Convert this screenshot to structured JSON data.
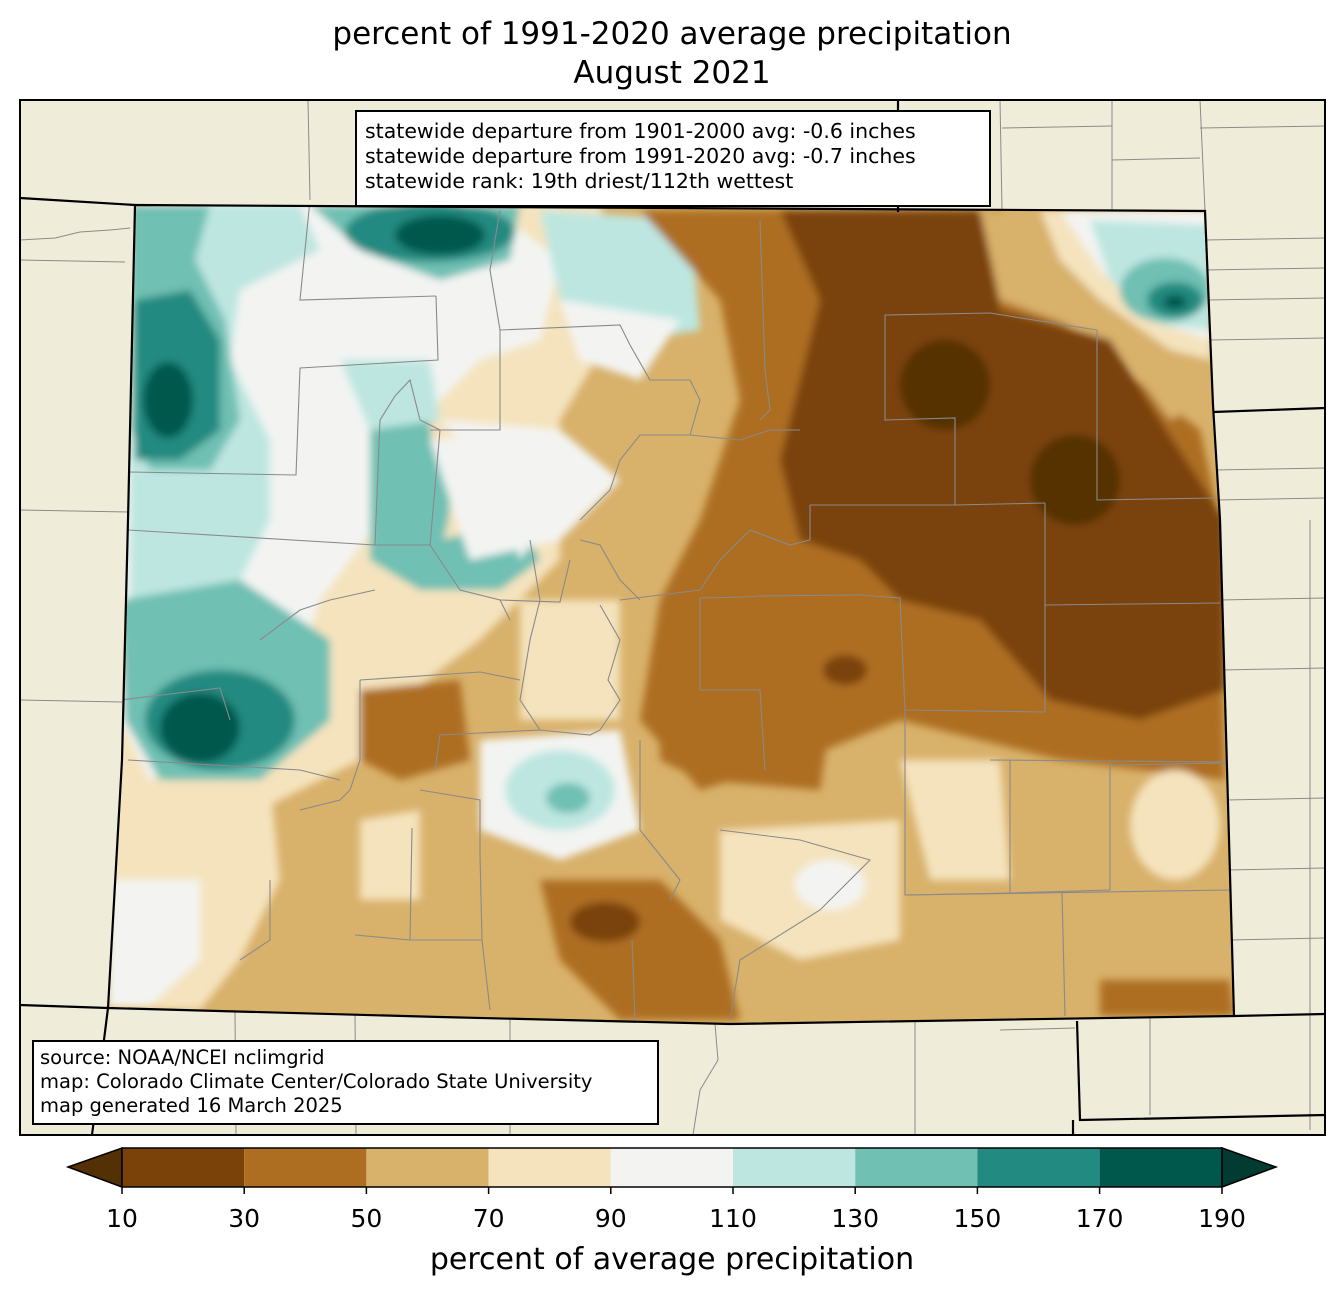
{
  "title": {
    "line1": "percent of 1991-2020 average precipitation",
    "line2": "August 2021"
  },
  "stats_box": {
    "line1": "statewide departure from 1901-2000 avg: -0.6 inches",
    "line2": "statewide departure from 1991-2020 avg: -0.7 inches",
    "line3": "statewide rank: 19th driest/112th wettest"
  },
  "source_box": {
    "line1": "source: NOAA/NCEI nclimgrid",
    "line2": "map: Colorado Climate Center/Colorado State University",
    "line3": "map generated 16 March 2025"
  },
  "colorbar": {
    "label": "percent of average precipitation",
    "ticks": [
      "10",
      "30",
      "50",
      "70",
      "90",
      "110",
      "130",
      "150",
      "170",
      "190"
    ],
    "colors": [
      "#543005",
      "#7a4209",
      "#ad6e21",
      "#d8b16b",
      "#f4e3bd",
      "#f3f4f2",
      "#bde6e0",
      "#70c0b3",
      "#228a80",
      "#00584d",
      "#013b31"
    ]
  },
  "map": {
    "background_color": "#efedda",
    "state_fill_base": "#d8b16b"
  }
}
